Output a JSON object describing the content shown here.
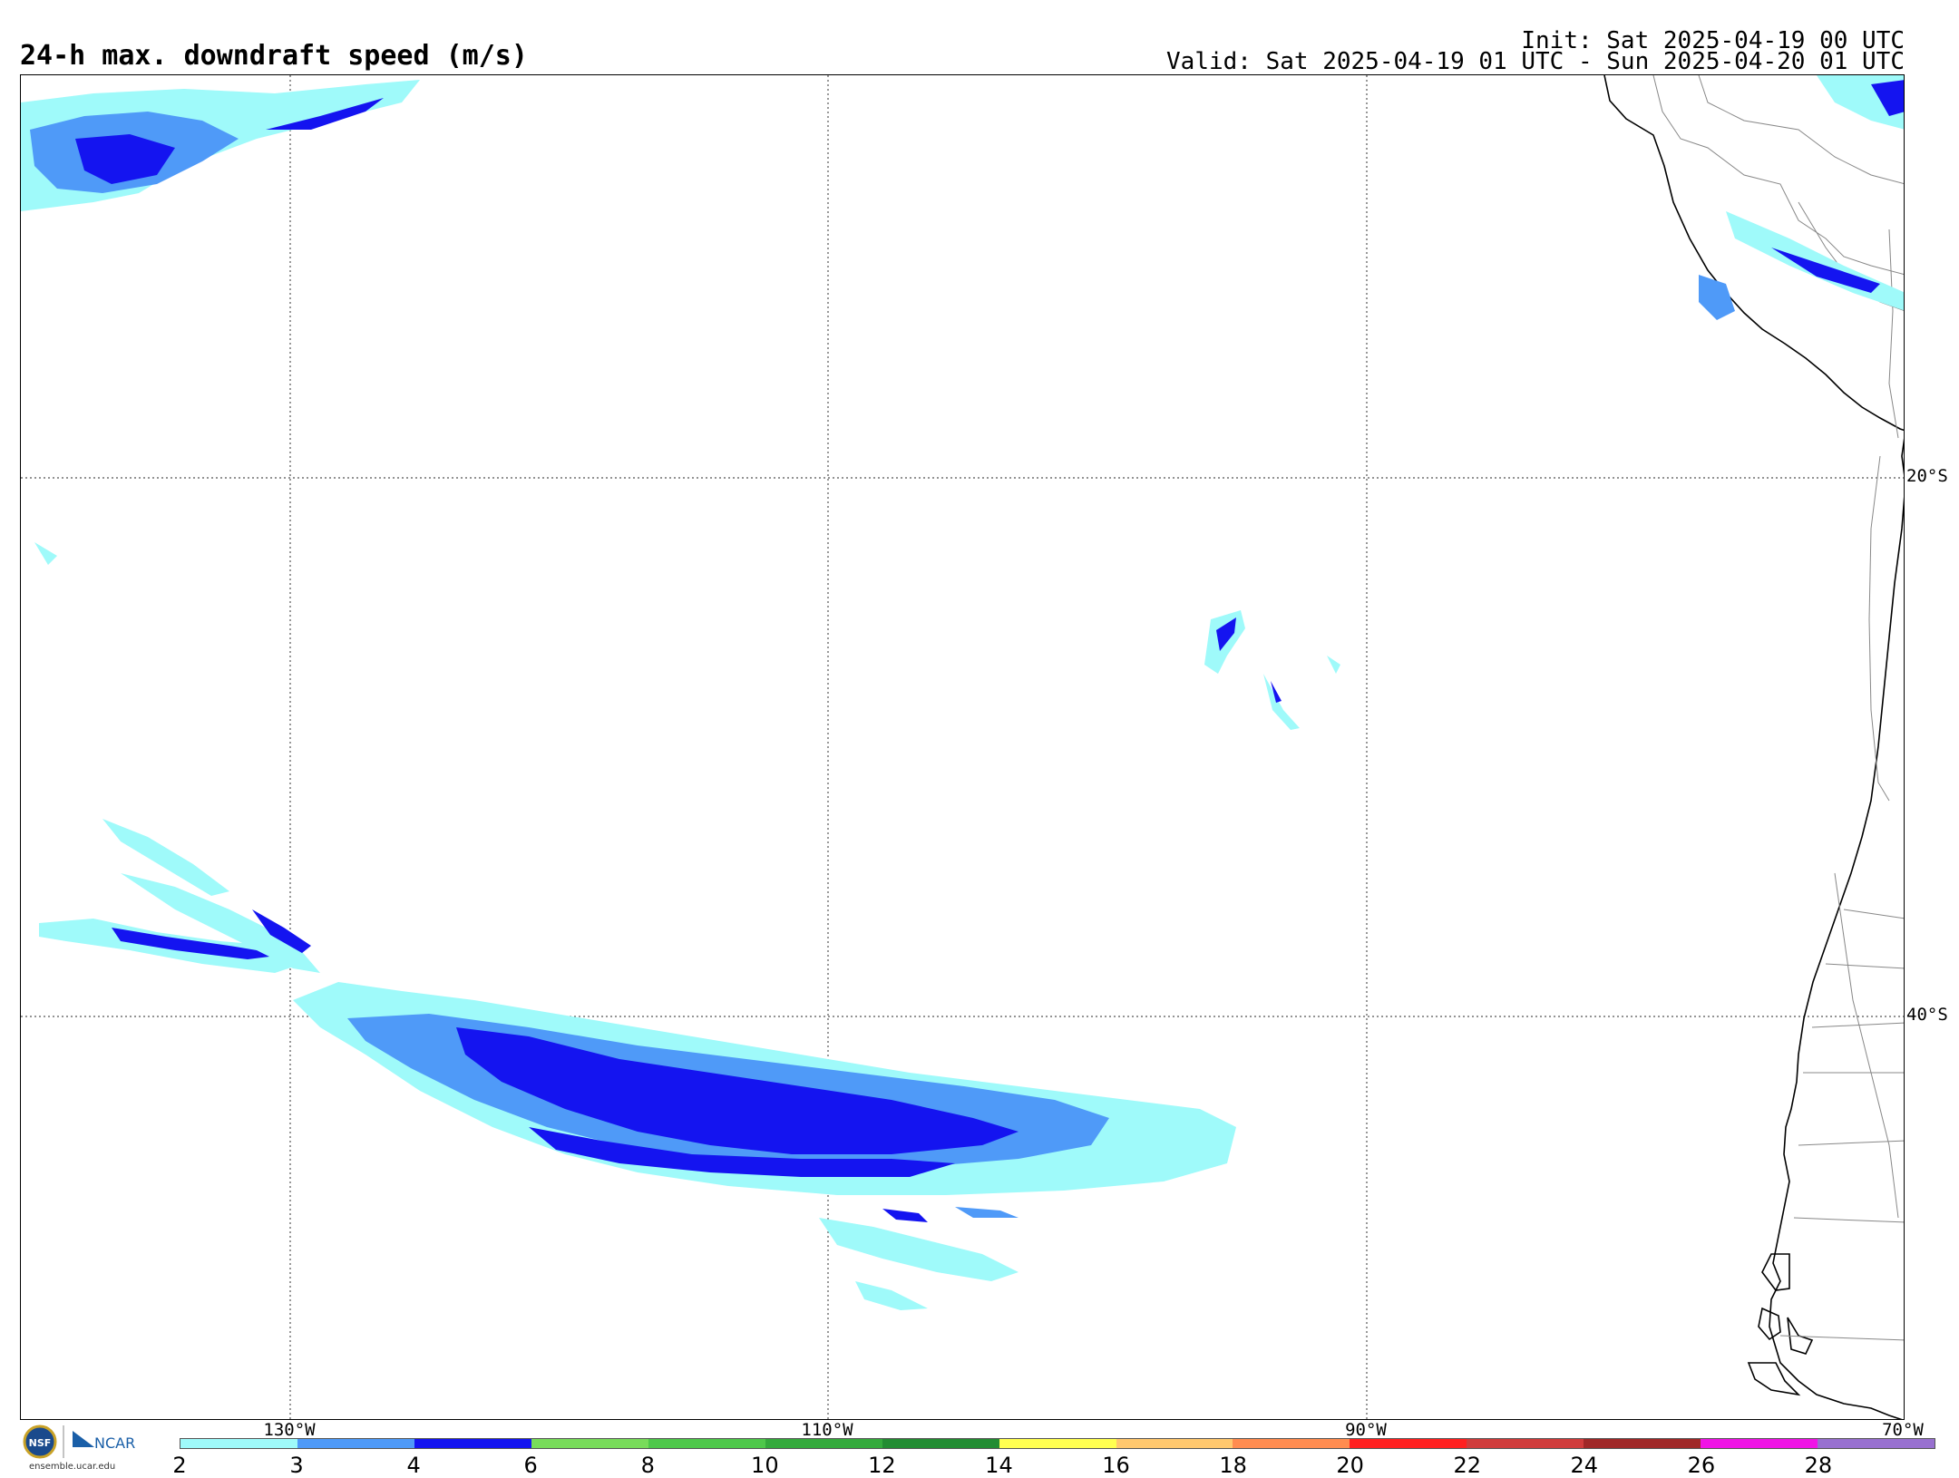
{
  "header": {
    "title": "24-h max. downdraft speed (m/s)",
    "init": "Init: Sat 2025-04-19 00 UTC",
    "valid": "Valid: Sat 2025-04-19 01 UTC - Sun 2025-04-20 01 UTC"
  },
  "map": {
    "lat_labels": [
      "20°S",
      "40°S"
    ],
    "lon_labels": [
      "130°W",
      "110°W",
      "90°W",
      "70°W"
    ]
  },
  "colorbar": {
    "ticks": [
      "2",
      "3",
      "4",
      "6",
      "8",
      "10",
      "12",
      "14",
      "16",
      "18",
      "20",
      "22",
      "24",
      "26",
      "28"
    ],
    "colors": [
      "#9ffafa",
      "#4f9af8",
      "#1414f0",
      "#78dc5a",
      "#4ec84a",
      "#34aa3c",
      "#228c32",
      "#ffff50",
      "#ffc86e",
      "#ff8c50",
      "#ff2020",
      "#d03c3c",
      "#a02828",
      "#f014e6",
      "#9870d0"
    ]
  },
  "footer": {
    "logo_text": "NCAR",
    "logo_seal": "NSF",
    "site": "ensemble.ucar.edu"
  }
}
